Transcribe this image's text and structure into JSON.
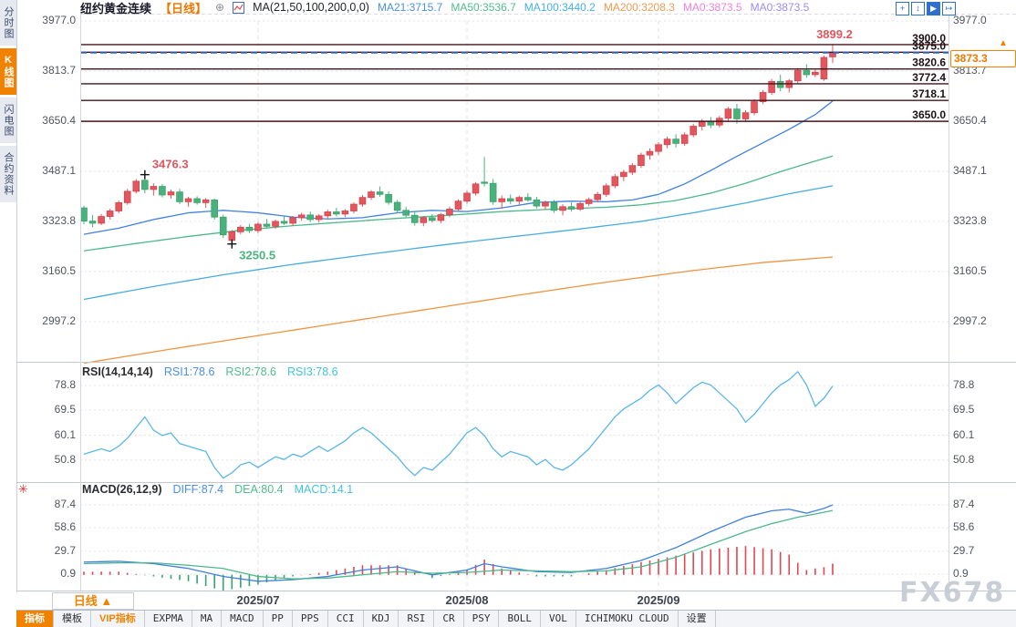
{
  "header": {
    "symbol": "纽约黄金连续",
    "period_tag": "【日线】",
    "add_icon": "⊕",
    "ma_settings": "MA(21,50,100,200,0,0)",
    "ma_values": [
      {
        "label": "MA21:3715.7",
        "color": "#4a8fe8"
      },
      {
        "label": "MA50:3536.7",
        "color": "#4fbd8d"
      },
      {
        "label": "MA100:3440.2",
        "color": "#45b0e8"
      },
      {
        "label": "MA200:3208.3",
        "color": "#f09a52"
      },
      {
        "label": "MA0:3873.5",
        "color": "#f080d8"
      },
      {
        "label": "MA0:3873.5",
        "color": "#9a8cf0"
      }
    ],
    "icons": [
      "+",
      "↕",
      "▶",
      "↦"
    ]
  },
  "sidebar": {
    "items": [
      "分时图",
      "K线图",
      "闪电图",
      "合约资料"
    ]
  },
  "main_chart": {
    "y_axis_labels": [
      "3977.0",
      "3813.7",
      "3650.4",
      "3487.1",
      "3323.8",
      "3160.5",
      "2997.2"
    ],
    "current_price": {
      "label": "3873.3",
      "value": 3873.3,
      "arrow": "▲"
    }
  },
  "rsi_panel": {
    "title": "RSI(14,14,14)",
    "values": [
      {
        "label": "RSI1:78.6",
        "color": "#4a8fe8"
      },
      {
        "label": "RSI2:78.6",
        "color": "#4fbd8d"
      },
      {
        "label": "RSI3:78.6",
        "color": "#40c4e0"
      }
    ],
    "y_axis_labels": [
      "78.8",
      "69.5",
      "60.1",
      "50.8"
    ]
  },
  "macd_panel": {
    "title": "MACD(26,12,9)",
    "values": [
      {
        "label": "DIFF:87.4",
        "color": "#4a8fe8"
      },
      {
        "label": "DEA:80.4",
        "color": "#4fbd8d"
      },
      {
        "label": "MACD:14.1",
        "color": "#40c4e0"
      }
    ],
    "y_axis_labels": [
      "87.4",
      "58.6",
      "29.7",
      "0.9"
    ]
  },
  "x_axis": {
    "labels": [
      "2025/07",
      "2025/08",
      "2025/09"
    ],
    "period_button": "日线 ▲"
  },
  "bottom_toolbar": {
    "items": [
      "指标",
      "模板",
      "VIP指标",
      "EXPMA",
      "MA",
      "MACD",
      "PP",
      "PPS",
      "CCI",
      "KDJ",
      "RSI",
      "CR",
      "PSY",
      "BOLL",
      "VOL",
      "ICHIMOKU CLOUD",
      "设置"
    ]
  },
  "watermark": "FX678",
  "chart_data": {
    "type": "candlestick",
    "title": "纽约黄金连续 日线",
    "price_axis": {
      "ticks": [
        3977.0,
        3813.7,
        3650.4,
        3487.1,
        3323.8,
        3160.5,
        2997.2
      ]
    },
    "x_ticks": [
      {
        "index": 20,
        "label": "2025/07"
      },
      {
        "index": 44,
        "label": "2025/08"
      },
      {
        "index": 66,
        "label": "2025/09"
      }
    ],
    "levels": [
      {
        "price": 3900.0,
        "label": "3900.0"
      },
      {
        "price": 3875.0,
        "label": "3875.0"
      },
      {
        "price": 3820.6,
        "label": "3820.6"
      },
      {
        "price": 3772.4,
        "label": "3772.4"
      },
      {
        "price": 3718.1,
        "label": "3718.1"
      },
      {
        "price": 3650.0,
        "label": "3650.0"
      }
    ],
    "current_price": 3873.3,
    "markers": [
      {
        "index": 7,
        "price": 3476.3,
        "label": "3476.3",
        "color": "#e2565e",
        "pos": "above"
      },
      {
        "index": 17,
        "price": 3250.5,
        "label": "3250.5",
        "color": "#4bb47e",
        "pos": "below"
      },
      {
        "index": 86,
        "price": 3899.2,
        "label": "3899.2",
        "color": "#e2565e",
        "pos": "top"
      }
    ],
    "candles": [
      [
        3368,
        3375,
        3315,
        3325
      ],
      [
        3325,
        3345,
        3305,
        3318
      ],
      [
        3318,
        3348,
        3312,
        3340
      ],
      [
        3340,
        3365,
        3330,
        3358
      ],
      [
        3358,
        3392,
        3350,
        3385
      ],
      [
        3385,
        3430,
        3378,
        3422
      ],
      [
        3422,
        3462,
        3415,
        3455
      ],
      [
        3458,
        3476.3,
        3415,
        3428
      ],
      [
        3428,
        3448,
        3408,
        3438
      ],
      [
        3438,
        3446,
        3402,
        3410
      ],
      [
        3410,
        3428,
        3398,
        3420
      ],
      [
        3420,
        3430,
        3380,
        3388
      ],
      [
        3388,
        3404,
        3372,
        3398
      ],
      [
        3398,
        3406,
        3378,
        3385
      ],
      [
        3385,
        3400,
        3368,
        3394
      ],
      [
        3394,
        3398,
        3330,
        3338
      ],
      [
        3338,
        3346,
        3270,
        3280
      ],
      [
        3262,
        3296,
        3250.5,
        3290
      ],
      [
        3290,
        3312,
        3282,
        3305
      ],
      [
        3305,
        3316,
        3286,
        3294
      ],
      [
        3294,
        3322,
        3286,
        3315
      ],
      [
        3315,
        3332,
        3302,
        3308
      ],
      [
        3308,
        3330,
        3300,
        3324
      ],
      [
        3324,
        3340,
        3312,
        3318
      ],
      [
        3318,
        3342,
        3310,
        3336
      ],
      [
        3336,
        3352,
        3326,
        3345
      ],
      [
        3345,
        3356,
        3322,
        3330
      ],
      [
        3330,
        3348,
        3320,
        3342
      ],
      [
        3342,
        3362,
        3334,
        3355
      ],
      [
        3355,
        3368,
        3340,
        3348
      ],
      [
        3348,
        3364,
        3338,
        3358
      ],
      [
        3358,
        3386,
        3350,
        3380
      ],
      [
        3380,
        3410,
        3372,
        3402
      ],
      [
        3402,
        3426,
        3394,
        3420
      ],
      [
        3420,
        3438,
        3404,
        3412
      ],
      [
        3412,
        3422,
        3378,
        3386
      ],
      [
        3386,
        3394,
        3352,
        3360
      ],
      [
        3360,
        3372,
        3336,
        3344
      ],
      [
        3344,
        3356,
        3310,
        3320
      ],
      [
        3320,
        3342,
        3308,
        3336
      ],
      [
        3336,
        3348,
        3320,
        3327
      ],
      [
        3327,
        3352,
        3318,
        3346
      ],
      [
        3346,
        3372,
        3338,
        3364
      ],
      [
        3364,
        3396,
        3356,
        3390
      ],
      [
        3390,
        3424,
        3382,
        3416
      ],
      [
        3416,
        3452,
        3408,
        3446
      ],
      [
        3452,
        3534,
        3438,
        3448
      ],
      [
        3448,
        3462,
        3378,
        3388
      ],
      [
        3388,
        3408,
        3365,
        3398
      ],
      [
        3398,
        3412,
        3380,
        3390
      ],
      [
        3390,
        3408,
        3378,
        3402
      ],
      [
        3402,
        3416,
        3388,
        3394
      ],
      [
        3394,
        3404,
        3366,
        3374
      ],
      [
        3374,
        3392,
        3362,
        3386
      ],
      [
        3386,
        3394,
        3352,
        3360
      ],
      [
        3360,
        3380,
        3344,
        3372
      ],
      [
        3372,
        3386,
        3356,
        3364
      ],
      [
        3364,
        3390,
        3358,
        3382
      ],
      [
        3382,
        3402,
        3374,
        3395
      ],
      [
        3395,
        3420,
        3386,
        3412
      ],
      [
        3412,
        3448,
        3404,
        3440
      ],
      [
        3440,
        3478,
        3432,
        3470
      ],
      [
        3470,
        3492,
        3455,
        3484
      ],
      [
        3484,
        3514,
        3475,
        3506
      ],
      [
        3506,
        3548,
        3498,
        3540
      ],
      [
        3540,
        3562,
        3525,
        3552
      ],
      [
        3552,
        3582,
        3540,
        3574
      ],
      [
        3574,
        3600,
        3562,
        3592
      ],
      [
        3592,
        3608,
        3565,
        3578
      ],
      [
        3578,
        3614,
        3570,
        3606
      ],
      [
        3606,
        3642,
        3598,
        3634
      ],
      [
        3634,
        3658,
        3620,
        3648
      ],
      [
        3648,
        3664,
        3628,
        3638
      ],
      [
        3638,
        3668,
        3630,
        3660
      ],
      [
        3660,
        3697,
        3652,
        3690
      ],
      [
        3690,
        3707,
        3642,
        3658
      ],
      [
        3658,
        3686,
        3650,
        3678
      ],
      [
        3678,
        3722,
        3670,
        3714
      ],
      [
        3714,
        3752,
        3706,
        3744
      ],
      [
        3744,
        3788,
        3736,
        3780
      ],
      [
        3780,
        3802,
        3748,
        3760
      ],
      [
        3760,
        3788,
        3744,
        3782
      ],
      [
        3782,
        3824,
        3774,
        3816
      ],
      [
        3816,
        3836,
        3792,
        3802
      ],
      [
        3802,
        3818,
        3794,
        3810
      ],
      [
        3788,
        3864,
        3782,
        3858
      ],
      [
        3860,
        3899.2,
        3840,
        3873.3
      ]
    ],
    "ma": {
      "ma21": {
        "color": "#4080e0",
        "points": [
          [
            0,
            3282
          ],
          [
            4,
            3302
          ],
          [
            8,
            3330
          ],
          [
            12,
            3352
          ],
          [
            16,
            3360
          ],
          [
            20,
            3352
          ],
          [
            24,
            3338
          ],
          [
            28,
            3332
          ],
          [
            32,
            3336
          ],
          [
            36,
            3352
          ],
          [
            40,
            3360
          ],
          [
            44,
            3356
          ],
          [
            48,
            3368
          ],
          [
            52,
            3386
          ],
          [
            56,
            3390
          ],
          [
            60,
            3388
          ],
          [
            63,
            3394
          ],
          [
            66,
            3412
          ],
          [
            69,
            3446
          ],
          [
            72,
            3490
          ],
          [
            75,
            3536
          ],
          [
            78,
            3580
          ],
          [
            81,
            3624
          ],
          [
            84,
            3672
          ],
          [
            86,
            3716
          ]
        ]
      },
      "ma50": {
        "color": "#4cb88c",
        "points": [
          [
            0,
            3228
          ],
          [
            6,
            3252
          ],
          [
            12,
            3275
          ],
          [
            18,
            3295
          ],
          [
            24,
            3310
          ],
          [
            30,
            3322
          ],
          [
            36,
            3334
          ],
          [
            42,
            3344
          ],
          [
            48,
            3356
          ],
          [
            54,
            3364
          ],
          [
            60,
            3370
          ],
          [
            64,
            3378
          ],
          [
            68,
            3392
          ],
          [
            72,
            3416
          ],
          [
            76,
            3448
          ],
          [
            80,
            3486
          ],
          [
            83,
            3512
          ],
          [
            86,
            3537
          ]
        ]
      },
      "ma100": {
        "color": "#46acdf",
        "points": [
          [
            0,
            3070
          ],
          [
            8,
            3112
          ],
          [
            16,
            3150
          ],
          [
            24,
            3184
          ],
          [
            32,
            3214
          ],
          [
            40,
            3243
          ],
          [
            48,
            3270
          ],
          [
            56,
            3296
          ],
          [
            64,
            3324
          ],
          [
            70,
            3352
          ],
          [
            76,
            3384
          ],
          [
            81,
            3414
          ],
          [
            86,
            3440
          ]
        ]
      },
      "ma200": {
        "color": "#ef9440",
        "points": [
          [
            0,
            2862
          ],
          [
            10,
            2908
          ],
          [
            20,
            2952
          ],
          [
            30,
            2996
          ],
          [
            40,
            3040
          ],
          [
            50,
            3084
          ],
          [
            60,
            3126
          ],
          [
            70,
            3164
          ],
          [
            78,
            3190
          ],
          [
            86,
            3208
          ]
        ]
      }
    },
    "rsi": {
      "ticks": [
        78.8,
        69.5,
        60.1,
        50.8
      ],
      "values": [
        53,
        54,
        55,
        54,
        56,
        59,
        63,
        67,
        62,
        60,
        61,
        57,
        56,
        55,
        54,
        48,
        44,
        46,
        49,
        50,
        48,
        50,
        52,
        51,
        53,
        52,
        54,
        56,
        54,
        56,
        58,
        61,
        63,
        61,
        58,
        55,
        52,
        48,
        45,
        48,
        47,
        50,
        53,
        57,
        61,
        63,
        60,
        55,
        52,
        54,
        53,
        52,
        49,
        51,
        48,
        47,
        49,
        52,
        55,
        59,
        63,
        67,
        70,
        72,
        74,
        77,
        79,
        76,
        72,
        75,
        78,
        80,
        79,
        76,
        73,
        70,
        65,
        68,
        72,
        76,
        79,
        81,
        84,
        79,
        71,
        74,
        78.6
      ]
    },
    "macd": {
      "ticks": [
        87.4,
        58.6,
        29.7,
        0.9
      ],
      "diff_points": [
        [
          0,
          16
        ],
        [
          4,
          17
        ],
        [
          8,
          14
        ],
        [
          12,
          8
        ],
        [
          16,
          -2
        ],
        [
          20,
          -8
        ],
        [
          24,
          -6
        ],
        [
          28,
          -2
        ],
        [
          32,
          6
        ],
        [
          36,
          10
        ],
        [
          40,
          0
        ],
        [
          44,
          6
        ],
        [
          46,
          14
        ],
        [
          48,
          10
        ],
        [
          52,
          4
        ],
        [
          56,
          3
        ],
        [
          60,
          8
        ],
        [
          64,
          18
        ],
        [
          68,
          34
        ],
        [
          72,
          54
        ],
        [
          76,
          72
        ],
        [
          79,
          80
        ],
        [
          81,
          82
        ],
        [
          83,
          77
        ],
        [
          85,
          83
        ],
        [
          86,
          87.4
        ]
      ],
      "dea_points": [
        [
          0,
          14
        ],
        [
          4,
          15
        ],
        [
          8,
          15
        ],
        [
          12,
          12
        ],
        [
          16,
          8
        ],
        [
          20,
          -2
        ],
        [
          24,
          -5
        ],
        [
          28,
          -4
        ],
        [
          32,
          0
        ],
        [
          36,
          4
        ],
        [
          40,
          2
        ],
        [
          44,
          3
        ],
        [
          48,
          6
        ],
        [
          52,
          5
        ],
        [
          56,
          4
        ],
        [
          60,
          5
        ],
        [
          64,
          10
        ],
        [
          68,
          22
        ],
        [
          72,
          38
        ],
        [
          76,
          54
        ],
        [
          79,
          64
        ],
        [
          82,
          72
        ],
        [
          84,
          76
        ],
        [
          86,
          80.4
        ]
      ]
    }
  }
}
